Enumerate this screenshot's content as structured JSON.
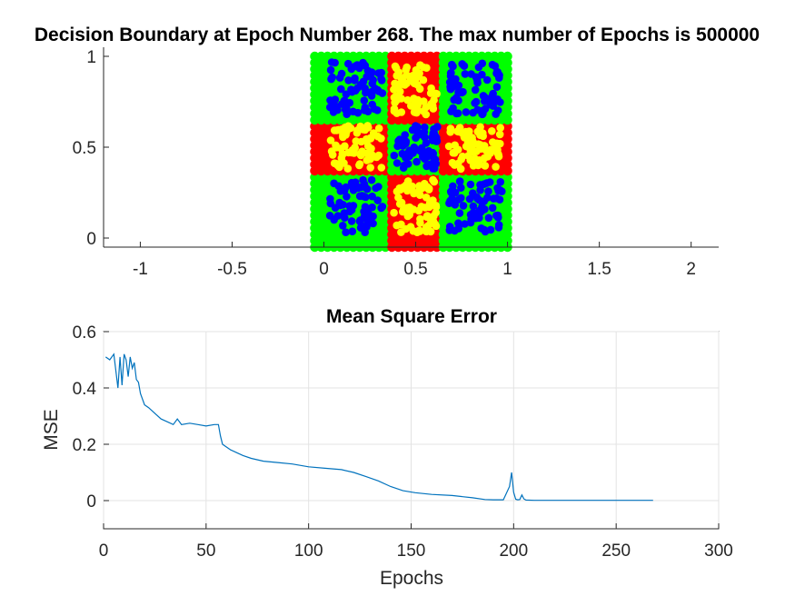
{
  "chart_data": [
    {
      "type": "scatter",
      "title": "Decision Boundary at Epoch Number 268. The max number of Epochs is 500000",
      "xlabel": "",
      "ylabel": "",
      "xlim": [
        -1.2,
        2.15
      ],
      "ylim": [
        -0.05,
        1.05
      ],
      "xticks": [
        -1,
        -0.5,
        0,
        0.5,
        1,
        1.5,
        2
      ],
      "xtick_labels": [
        "-1",
        "-0.5",
        "0",
        "0.5",
        "1",
        "1.5",
        "2"
      ],
      "yticks": [
        0,
        0.5,
        1
      ],
      "ytick_labels": [
        "0",
        "0.5",
        "1"
      ],
      "grid": false,
      "boundary_grid": {
        "x_range": [
          -0.05,
          1.0
        ],
        "y_range": [
          -0.05,
          1.0
        ],
        "step": 0.035
      },
      "regions": [
        {
          "name": "class-A region",
          "color": "#00ff00"
        },
        {
          "name": "class-B region",
          "color": "#ff0000"
        }
      ],
      "cell_splits": [
        0.35,
        0.65
      ],
      "data_points": [
        {
          "name": "class-A samples",
          "color": "#0000ff",
          "cells": "corners-and-center"
        },
        {
          "name": "class-B samples",
          "color": "#ffff00",
          "cells": "edges"
        }
      ]
    },
    {
      "type": "line",
      "title": "Mean Square Error",
      "xlabel": "Epochs",
      "ylabel": "MSE",
      "xlim": [
        0,
        300
      ],
      "ylim": [
        -0.1,
        0.6
      ],
      "xticks": [
        0,
        50,
        100,
        150,
        200,
        250,
        300
      ],
      "xtick_labels": [
        "0",
        "50",
        "100",
        "150",
        "200",
        "250",
        "300"
      ],
      "yticks": [
        0,
        0.2,
        0.4,
        0.6
      ],
      "ytick_labels": [
        "0",
        "0.2",
        "0.4",
        "0.6"
      ],
      "grid": true,
      "line_color": "#0072bd",
      "series": [
        {
          "x": [
            1,
            3,
            5,
            7,
            8,
            9,
            10,
            11,
            12,
            13,
            14,
            15,
            16,
            17,
            18,
            20,
            22,
            25,
            28,
            31,
            34,
            36,
            38,
            42,
            46,
            50,
            54,
            56,
            57,
            58,
            60,
            62,
            65,
            68,
            72,
            78,
            85,
            92,
            100,
            108,
            116,
            122,
            128,
            134,
            140,
            146,
            152,
            160,
            170,
            180,
            186,
            190,
            195,
            198,
            199,
            200,
            201,
            202,
            203,
            204,
            205,
            206,
            210,
            220,
            240,
            260,
            268
          ],
          "y": [
            0.51,
            0.5,
            0.52,
            0.4,
            0.51,
            0.41,
            0.52,
            0.5,
            0.44,
            0.51,
            0.47,
            0.49,
            0.43,
            0.42,
            0.38,
            0.34,
            0.33,
            0.31,
            0.29,
            0.28,
            0.27,
            0.29,
            0.27,
            0.275,
            0.27,
            0.265,
            0.27,
            0.27,
            0.23,
            0.2,
            0.19,
            0.18,
            0.17,
            0.16,
            0.15,
            0.14,
            0.135,
            0.13,
            0.12,
            0.115,
            0.11,
            0.1,
            0.085,
            0.07,
            0.05,
            0.035,
            0.028,
            0.022,
            0.018,
            0.01,
            0.004,
            0.003,
            0.003,
            0.05,
            0.1,
            0.03,
            0.005,
            0.003,
            0.004,
            0.02,
            0.006,
            0.002,
            0.001,
            0.001,
            0.001,
            0.001,
            0.001
          ]
        }
      ]
    }
  ]
}
